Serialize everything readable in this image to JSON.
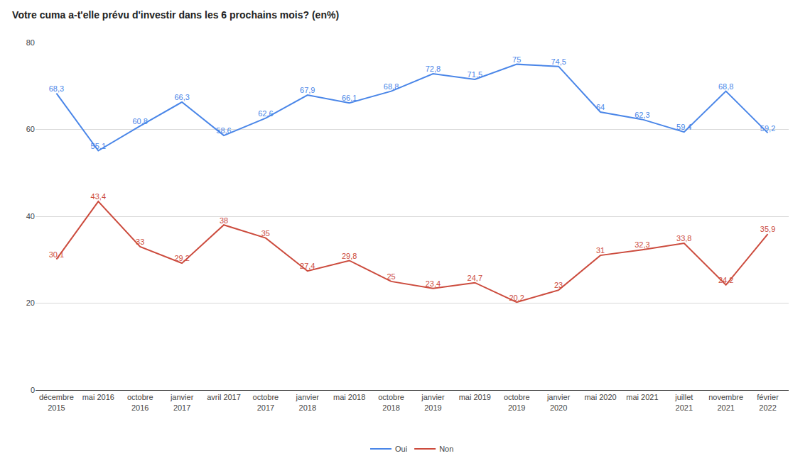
{
  "chart_data": {
    "type": "line",
    "title": "Votre cuma a-t'elle prévu d'investir dans les 6 prochains mois? (en%)",
    "categories": [
      "décembre 2015",
      "mai 2016",
      "octobre 2016",
      "janvier 2017",
      "avril 2017",
      "octobre 2017",
      "janvier 2018",
      "mai 2018",
      "octobre 2018",
      "janvier 2019",
      "mai 2019",
      "octobre 2019",
      "janvier 2020",
      "mai 2020",
      "mai 2021",
      "juillet 2021",
      "novembre 2021",
      "février 2022"
    ],
    "series": [
      {
        "name": "Oui",
        "color": "#4a86e8",
        "values": [
          68.3,
          55.1,
          60.8,
          66.3,
          58.6,
          62.6,
          67.9,
          66.1,
          68.8,
          72.8,
          71.5,
          75,
          74.5,
          64,
          62.3,
          59.4,
          68.8,
          59.2
        ],
        "value_labels": [
          "68,3",
          "55,1",
          "60,8",
          "66,3",
          "58,6",
          "62,6",
          "67,9",
          "66,1",
          "68,8",
          "72,8",
          "71,5",
          "75",
          "74,5",
          "64",
          "62,3",
          "59,4",
          "68,8",
          "59,2"
        ]
      },
      {
        "name": "Non",
        "color": "#cc4b3d",
        "values": [
          30.1,
          43.4,
          33,
          29.2,
          38,
          35,
          27.4,
          29.8,
          25,
          23.4,
          24.7,
          20.2,
          23,
          31,
          32.3,
          33.8,
          24.2,
          35.9
        ],
        "value_labels": [
          "30,1",
          "43,4",
          "33",
          "29,2",
          "38",
          "35",
          "27,4",
          "29,8",
          "25",
          "23,4",
          "24,7",
          "20,2",
          "23",
          "31",
          "32,3",
          "33,8",
          "24,2",
          "35,9"
        ]
      }
    ],
    "ylim": [
      0,
      80
    ],
    "yticks": [
      0,
      20,
      40,
      60,
      80
    ],
    "grid": true,
    "legend": "bottom",
    "data_labels": true
  }
}
